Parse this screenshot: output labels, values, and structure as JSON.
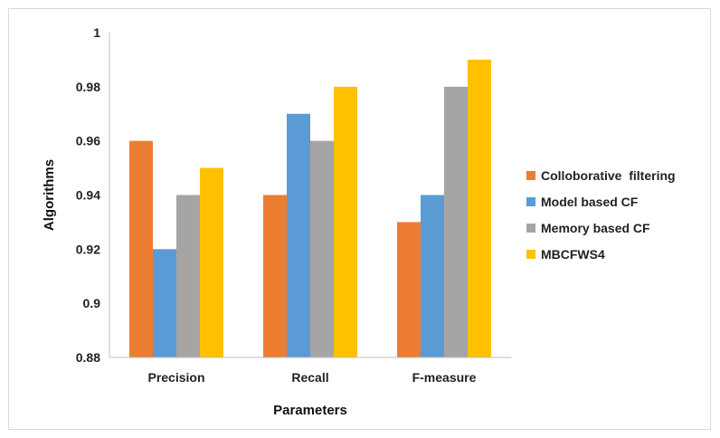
{
  "chart_data": {
    "type": "bar",
    "title": "",
    "xlabel": "Parameters",
    "ylabel": "Algorithms",
    "categories": [
      "Precision",
      "Recall",
      "F-measure"
    ],
    "ylim": [
      0.88,
      1
    ],
    "yticks": [
      "0.88",
      "0.9",
      "0.92",
      "0.94",
      "0.96",
      "0.98",
      "1"
    ],
    "grid": false,
    "legend_position": "right",
    "series": [
      {
        "name": "Colloborative  filtering",
        "color": "#ED7D31",
        "values": [
          0.96,
          0.94,
          0.93
        ]
      },
      {
        "name": "Model based CF",
        "color": "#5B9BD5",
        "values": [
          0.92,
          0.97,
          0.94
        ]
      },
      {
        "name": "Memory based CF",
        "color": "#A5A5A5",
        "values": [
          0.94,
          0.96,
          0.98
        ]
      },
      {
        "name": "MBCFWS4",
        "color": "#FFC000",
        "values": [
          0.95,
          0.98,
          0.99
        ]
      }
    ]
  }
}
